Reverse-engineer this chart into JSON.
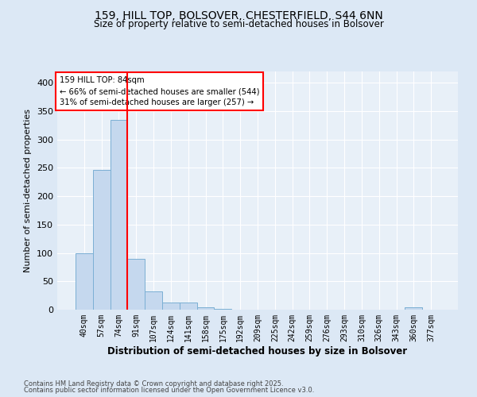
{
  "title1": "159, HILL TOP, BOLSOVER, CHESTERFIELD, S44 6NN",
  "title2": "Size of property relative to semi-detached houses in Bolsover",
  "xlabel": "Distribution of semi-detached houses by size in Bolsover",
  "ylabel": "Number of semi-detached properties",
  "categories": [
    "40sqm",
    "57sqm",
    "74sqm",
    "91sqm",
    "107sqm",
    "124sqm",
    "141sqm",
    "158sqm",
    "175sqm",
    "192sqm",
    "209sqm",
    "225sqm",
    "242sqm",
    "259sqm",
    "276sqm",
    "293sqm",
    "310sqm",
    "326sqm",
    "343sqm",
    "360sqm",
    "377sqm"
  ],
  "values": [
    100,
    246,
    335,
    90,
    32,
    12,
    12,
    4,
    1,
    0,
    0,
    0,
    0,
    0,
    0,
    0,
    0,
    0,
    0,
    4,
    0
  ],
  "bar_color": "#c5d8ee",
  "bar_edge_color": "#7bafd4",
  "vline_x_pos": 2.5,
  "vline_color": "red",
  "ylim": [
    0,
    420
  ],
  "yticks": [
    0,
    50,
    100,
    150,
    200,
    250,
    300,
    350,
    400
  ],
  "annotation_text": "159 HILL TOP: 84sqm\n← 66% of semi-detached houses are smaller (544)\n31% of semi-detached houses are larger (257) →",
  "annotation_box_color": "white",
  "annotation_box_edgecolor": "red",
  "footer1": "Contains HM Land Registry data © Crown copyright and database right 2025.",
  "footer2": "Contains public sector information licensed under the Open Government Licence v3.0.",
  "bg_color": "#dce8f5",
  "plot_bg_color": "#e8f0f8"
}
